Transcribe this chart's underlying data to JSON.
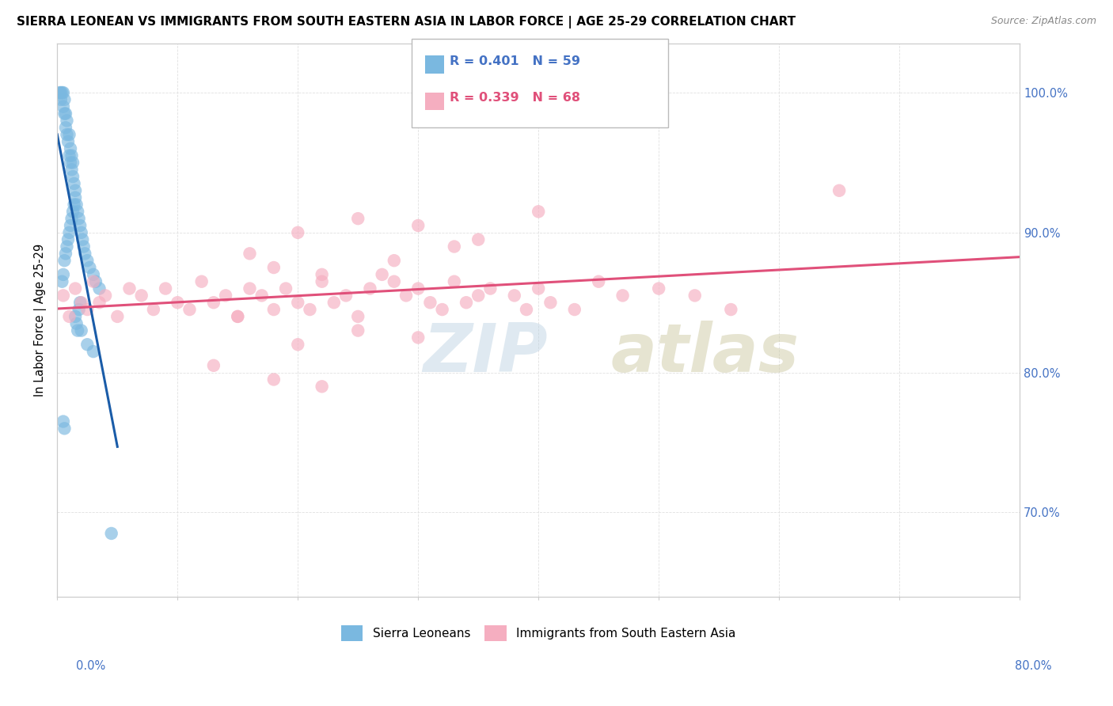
{
  "title": "SIERRA LEONEAN VS IMMIGRANTS FROM SOUTH EASTERN ASIA IN LABOR FORCE | AGE 25-29 CORRELATION CHART",
  "source": "Source: ZipAtlas.com",
  "ylabel": "In Labor Force | Age 25-29",
  "xlim": [
    0.0,
    80.0
  ],
  "ylim": [
    64.0,
    103.5
  ],
  "yticks": [
    70.0,
    80.0,
    90.0,
    100.0
  ],
  "blue_R": 0.401,
  "blue_N": 59,
  "pink_R": 0.339,
  "pink_N": 68,
  "blue_color": "#7ab8e0",
  "pink_color": "#f5aec0",
  "blue_line_color": "#1a5ca8",
  "pink_line_color": "#e0507a",
  "legend_blue_label": "Sierra Leoneans",
  "legend_pink_label": "Immigrants from South Eastern Asia",
  "axis_label_color": "#4472c4",
  "grid_color": "#dddddd",
  "blue_scatter_x": [
    0.2,
    0.3,
    0.3,
    0.4,
    0.5,
    0.5,
    0.6,
    0.6,
    0.7,
    0.7,
    0.8,
    0.8,
    0.9,
    1.0,
    1.0,
    1.1,
    1.1,
    1.2,
    1.2,
    1.3,
    1.3,
    1.4,
    1.5,
    1.5,
    1.6,
    1.7,
    1.8,
    1.9,
    2.0,
    2.1,
    2.2,
    2.3,
    2.5,
    2.7,
    3.0,
    3.2,
    3.5,
    0.4,
    0.5,
    0.6,
    0.7,
    0.8,
    0.9,
    1.0,
    1.1,
    1.2,
    1.3,
    1.4,
    1.5,
    1.6,
    1.7,
    1.8,
    1.9,
    2.0,
    2.5,
    3.0,
    0.5,
    0.6,
    4.5
  ],
  "blue_scatter_y": [
    100.0,
    100.0,
    99.5,
    100.0,
    99.0,
    100.0,
    98.5,
    99.5,
    97.5,
    98.5,
    97.0,
    98.0,
    96.5,
    97.0,
    95.5,
    96.0,
    95.0,
    95.5,
    94.5,
    95.0,
    94.0,
    93.5,
    93.0,
    92.5,
    92.0,
    91.5,
    91.0,
    90.5,
    90.0,
    89.5,
    89.0,
    88.5,
    88.0,
    87.5,
    87.0,
    86.5,
    86.0,
    86.5,
    87.0,
    88.0,
    88.5,
    89.0,
    89.5,
    90.0,
    90.5,
    91.0,
    91.5,
    92.0,
    84.0,
    83.5,
    83.0,
    84.5,
    85.0,
    83.0,
    82.0,
    81.5,
    76.5,
    76.0,
    68.5
  ],
  "pink_scatter_x": [
    0.5,
    1.0,
    1.5,
    2.0,
    2.5,
    3.0,
    3.5,
    4.0,
    5.0,
    6.0,
    7.0,
    8.0,
    9.0,
    10.0,
    11.0,
    12.0,
    13.0,
    14.0,
    15.0,
    16.0,
    17.0,
    18.0,
    19.0,
    20.0,
    21.0,
    22.0,
    23.0,
    24.0,
    25.0,
    26.0,
    27.0,
    28.0,
    29.0,
    30.0,
    31.0,
    32.0,
    33.0,
    34.0,
    35.0,
    36.0,
    38.0,
    39.0,
    40.0,
    41.0,
    43.0,
    45.0,
    47.0,
    50.0,
    53.0,
    56.0,
    16.0,
    20.0,
    25.0,
    30.0,
    35.0,
    40.0,
    18.0,
    22.0,
    28.0,
    33.0,
    15.0,
    20.0,
    25.0,
    30.0,
    13.0,
    18.0,
    22.0,
    65.0
  ],
  "pink_scatter_y": [
    85.5,
    84.0,
    86.0,
    85.0,
    84.5,
    86.5,
    85.0,
    85.5,
    84.0,
    86.0,
    85.5,
    84.5,
    86.0,
    85.0,
    84.5,
    86.5,
    85.0,
    85.5,
    84.0,
    86.0,
    85.5,
    84.5,
    86.0,
    85.0,
    84.5,
    86.5,
    85.0,
    85.5,
    84.0,
    86.0,
    87.0,
    86.5,
    85.5,
    86.0,
    85.0,
    84.5,
    86.5,
    85.0,
    85.5,
    86.0,
    85.5,
    84.5,
    86.0,
    85.0,
    84.5,
    86.5,
    85.5,
    86.0,
    85.5,
    84.5,
    88.5,
    90.0,
    91.0,
    90.5,
    89.5,
    91.5,
    87.5,
    87.0,
    88.0,
    89.0,
    84.0,
    82.0,
    83.0,
    82.5,
    80.5,
    79.5,
    79.0,
    93.0
  ]
}
